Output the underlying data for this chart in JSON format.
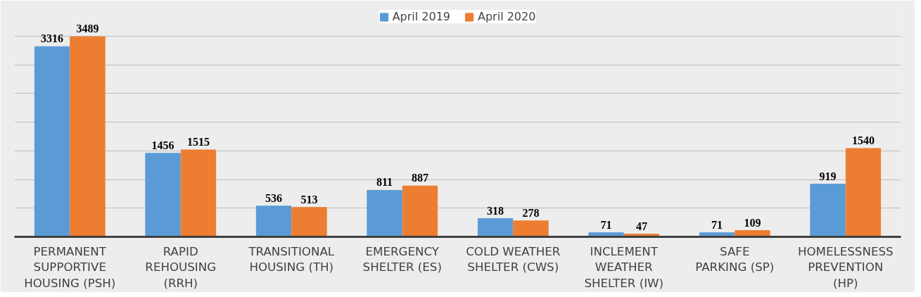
{
  "chart_data": {
    "type": "bar",
    "categories": [
      "PERMANENT\nSUPPORTIVE\nHOUSING (PSH)",
      "RAPID\nREHOUSING\n(RRH)",
      "TRANSITIONAL\nHOUSING (TH)",
      "EMERGENCY\nSHELTER (ES)",
      "COLD WEATHER\nSHELTER (CWS)",
      "INCLEMENT\nWEATHER\nSHELTER (IW)",
      "SAFE\nPARKING (SP)",
      "HOMELESSNESS\nPREVENTION\n(HP)"
    ],
    "series": [
      {
        "name": "April 2019",
        "color": "#5b9bd5",
        "values": [
          3316,
          1456,
          536,
          811,
          318,
          71,
          71,
          919
        ]
      },
      {
        "name": "April 2020",
        "color": "#ed7d31",
        "values": [
          3489,
          1515,
          513,
          887,
          278,
          47,
          109,
          1540
        ]
      }
    ],
    "ylim": [
      0,
      4000
    ],
    "yticks": [
      {
        "value": 0,
        "label": null
      },
      {
        "value": 500,
        "label": null
      },
      {
        "value": 1000,
        "label": null
      },
      {
        "value": 1500,
        "label": null
      },
      {
        "value": 2000,
        "label": null
      },
      {
        "value": 2500,
        "label": null
      },
      {
        "value": 3000,
        "label": null
      },
      {
        "value": 3500,
        "label": null
      },
      {
        "value": 4000,
        "label": null
      }
    ],
    "tick_labels": "x",
    "grid": "y",
    "legend": "top",
    "data_labels": true
  }
}
